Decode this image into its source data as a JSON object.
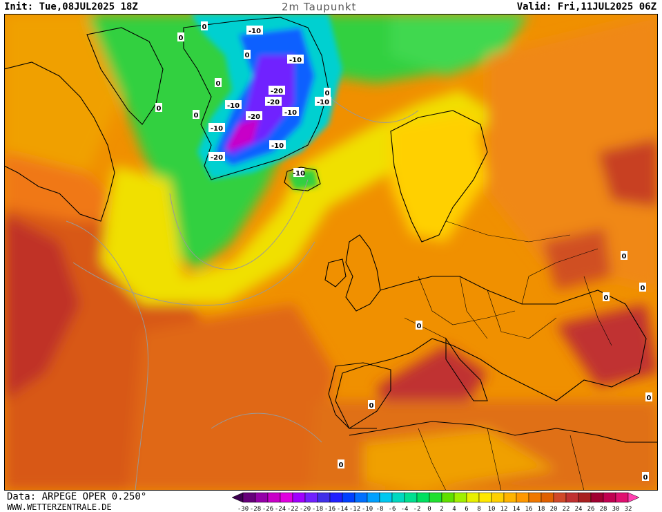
{
  "header": {
    "init": "Init: Tue,08JUL2025 18Z",
    "title": "2m Taupunkt",
    "valid": "Valid: Fri,11JUL2025 06Z"
  },
  "footer": {
    "data_source": "Data: ARPEGE OPER 0.250°",
    "website": "WWW.WETTERZENTRALE.DE"
  },
  "legend": {
    "ticks": [
      "-30",
      "-28",
      "-26",
      "-24",
      "-22",
      "-20",
      "-18",
      "-16",
      "-14",
      "-12",
      "-10",
      "-8",
      "-6",
      "-4",
      "-2",
      "0",
      "2",
      "4",
      "6",
      "8",
      "10",
      "12",
      "14",
      "16",
      "18",
      "20",
      "22",
      "24",
      "26",
      "28",
      "30",
      "32"
    ],
    "colors": [
      "#3d0050",
      "#66007a",
      "#9400a8",
      "#c800c8",
      "#e000e0",
      "#a000ff",
      "#7020ff",
      "#4030e8",
      "#2020ff",
      "#0040ff",
      "#0070ff",
      "#00a0ff",
      "#00c8f0",
      "#00d8c0",
      "#00e090",
      "#00e060",
      "#20e030",
      "#60e000",
      "#a0f000",
      "#e8f000",
      "#ffe800",
      "#ffd000",
      "#ffb400",
      "#ff9800",
      "#f07800",
      "#e06000",
      "#d04828",
      "#c03030",
      "#a82020",
      "#a00030",
      "#c00050",
      "#e01070",
      "#ff40b0"
    ]
  },
  "contour_labels": {
    "zero": "0",
    "minus10": "-10",
    "minus20": "-20"
  }
}
